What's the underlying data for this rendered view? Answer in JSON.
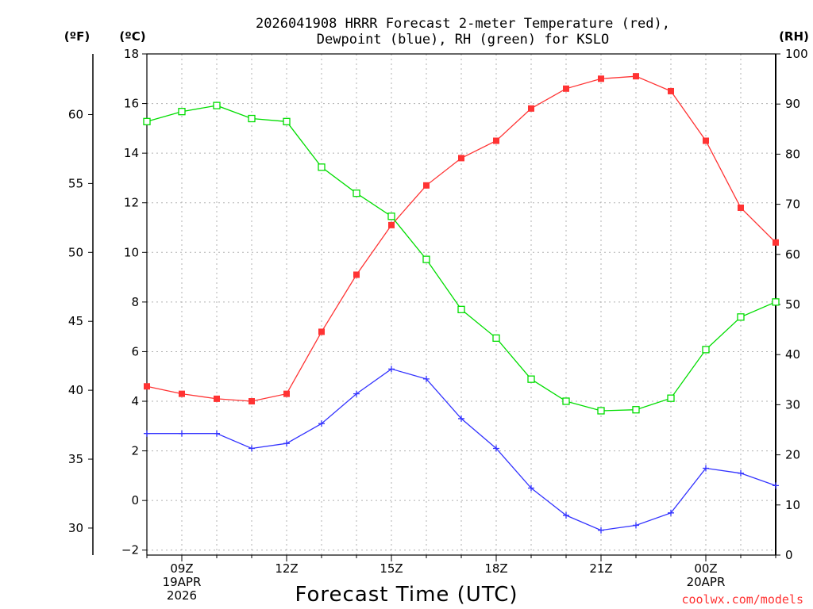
{
  "chart_data": {
    "type": "line",
    "title": "2026041908 HRRR Forecast 2-meter Temperature (red), Dewpoint (blue), RH (green) for KSLO",
    "title_lines": [
      "2026041908 HRRR Forecast 2-meter Temperature (red),",
      "Dewpoint (blue), RH (green) for KSLO"
    ],
    "xlabel": "Forecast Time (UTC)",
    "credit": "coolwx.com/models",
    "units": {
      "fahrenheit": "(ºF)",
      "celsius": "(ºC)",
      "rh": "(RH)"
    },
    "x": [
      8,
      9,
      10,
      11,
      12,
      13,
      14,
      15,
      16,
      17,
      18,
      19,
      20,
      21,
      22,
      23,
      24,
      25,
      26
    ],
    "x_range": [
      8,
      26
    ],
    "x_ticks": [
      {
        "x": 9,
        "lines": [
          "09Z",
          "19APR",
          "2026"
        ]
      },
      {
        "x": 12,
        "lines": [
          "12Z"
        ]
      },
      {
        "x": 15,
        "lines": [
          "15Z"
        ]
      },
      {
        "x": 18,
        "lines": [
          "18Z"
        ]
      },
      {
        "x": 21,
        "lines": [
          "21Z"
        ]
      },
      {
        "x": 24,
        "lines": [
          "00Z",
          "20APR"
        ]
      }
    ],
    "celsius_axis": {
      "range": [
        -2.2,
        18
      ],
      "ticks": [
        -2,
        0,
        2,
        4,
        6,
        8,
        10,
        12,
        14,
        16,
        18
      ]
    },
    "fahrenheit_axis": {
      "ticks": [
        30,
        35,
        40,
        45,
        50,
        55,
        60
      ]
    },
    "rh_axis": {
      "range": [
        0,
        100
      ],
      "ticks": [
        0,
        10,
        20,
        30,
        40,
        50,
        60,
        70,
        80,
        90,
        100
      ]
    },
    "series": [
      {
        "name": "Temperature",
        "unit": "C",
        "color": "#ff3333",
        "marker": "filled-square",
        "values": [
          4.6,
          4.3,
          4.1,
          4.0,
          4.3,
          6.8,
          9.1,
          11.1,
          12.7,
          13.8,
          14.5,
          15.8,
          16.6,
          17.0,
          17.1,
          16.5,
          14.5,
          11.8,
          10.4
        ]
      },
      {
        "name": "Dewpoint",
        "unit": "C",
        "color": "#3333ff",
        "marker": "plus",
        "values": [
          2.7,
          2.7,
          2.7,
          2.1,
          2.3,
          3.1,
          4.3,
          5.3,
          4.9,
          3.3,
          2.1,
          0.5,
          -0.6,
          -1.2,
          -1.0,
          -0.5,
          1.3,
          1.1,
          0.6
        ]
      },
      {
        "name": "RH",
        "unit": "%",
        "color": "#00dd00",
        "marker": "open-square",
        "values": [
          86.5,
          88.5,
          89.7,
          87.1,
          86.5,
          77.4,
          72.2,
          67.6,
          59.0,
          49.0,
          43.3,
          35.1,
          30.7,
          28.8,
          29.0,
          31.3,
          41.0,
          47.5,
          50.5
        ]
      }
    ]
  }
}
